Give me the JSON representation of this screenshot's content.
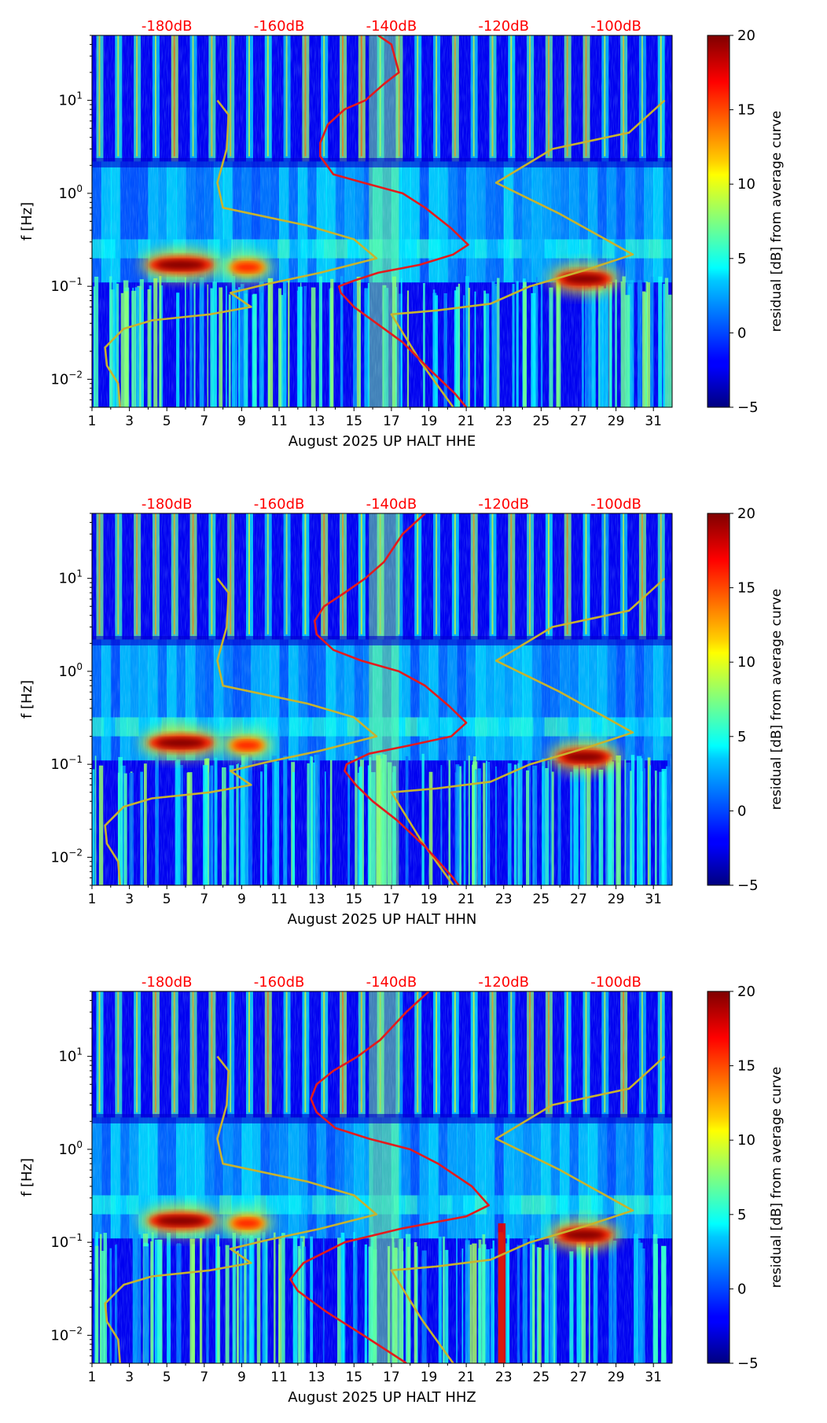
{
  "chart_data": [
    {
      "type": "heatmap",
      "panel": "HHE",
      "xlabel": "August 2025 UP HALT  HHE",
      "ylabel": "f [Hz]",
      "x_ticks": [
        "1",
        "3",
        "5",
        "7",
        "9",
        "11",
        "13",
        "15",
        "17",
        "19",
        "21",
        "23",
        "25",
        "27",
        "29",
        "31"
      ],
      "x_range": [
        1,
        32
      ],
      "y_range_hz": [
        0.005,
        50
      ],
      "y_ticks": [
        {
          "exp": "-2",
          "value": 0.01
        },
        {
          "exp": "-1",
          "value": 0.1
        },
        {
          "exp": "0",
          "value": 1
        },
        {
          "exp": "1",
          "value": 10
        }
      ],
      "top_db_labels": [
        "-180dB",
        "-160dB",
        "-140dB",
        "-120dB",
        "-100dB"
      ],
      "colorbar": {
        "label": "residual [dB] from average curve",
        "min": -5,
        "max": 20,
        "ticks": [
          "−5",
          "0",
          "5",
          "10",
          "15",
          "20"
        ]
      },
      "hot_spots": [
        {
          "x": [
            4.0,
            7.5
          ],
          "f": 0.17,
          "level": 20
        },
        {
          "x": [
            8.3,
            10.3
          ],
          "f": 0.16,
          "level": 16
        },
        {
          "x": [
            25.8,
            28.8
          ],
          "f": 0.12,
          "level": 20
        }
      ],
      "red_curve": [
        {
          "x": 16.3,
          "f": 50
        },
        {
          "x": 17.0,
          "f": 40
        },
        {
          "x": 17.4,
          "f": 20
        },
        {
          "x": 16.6,
          "f": 15
        },
        {
          "x": 15.6,
          "f": 10
        },
        {
          "x": 14.5,
          "f": 8
        },
        {
          "x": 13.6,
          "f": 5.5
        },
        {
          "x": 13.2,
          "f": 3.5
        },
        {
          "x": 13.2,
          "f": 2.5
        },
        {
          "x": 13.9,
          "f": 1.6
        },
        {
          "x": 15.5,
          "f": 1.3
        },
        {
          "x": 17.6,
          "f": 1.0
        },
        {
          "x": 18.8,
          "f": 0.7
        },
        {
          "x": 20.2,
          "f": 0.42
        },
        {
          "x": 21.1,
          "f": 0.28
        },
        {
          "x": 20.3,
          "f": 0.22
        },
        {
          "x": 18.5,
          "f": 0.17
        },
        {
          "x": 16.3,
          "f": 0.14
        },
        {
          "x": 15.0,
          "f": 0.115
        },
        {
          "x": 14.2,
          "f": 0.1
        },
        {
          "x": 14.3,
          "f": 0.085
        },
        {
          "x": 15.0,
          "f": 0.06
        },
        {
          "x": 16.2,
          "f": 0.04
        },
        {
          "x": 17.6,
          "f": 0.025
        },
        {
          "x": 19.0,
          "f": 0.013
        },
        {
          "x": 20.4,
          "f": 0.007
        },
        {
          "x": 21.0,
          "f": 0.005
        }
      ],
      "yellow_curve": [
        {
          "x": 2.5,
          "f": 0.005
        },
        {
          "x": 2.4,
          "f": 0.009
        },
        {
          "x": 1.8,
          "f": 0.014
        },
        {
          "x": 1.7,
          "f": 0.022
        },
        {
          "x": 2.7,
          "f": 0.035
        },
        {
          "x": 4.2,
          "f": 0.043
        },
        {
          "x": 7.3,
          "f": 0.05
        },
        {
          "x": 9.5,
          "f": 0.06
        },
        {
          "x": 8.4,
          "f": 0.085
        },
        {
          "x": 10.3,
          "f": 0.105
        },
        {
          "x": 13.2,
          "f": 0.14
        },
        {
          "x": 16.2,
          "f": 0.2
        },
        {
          "x": 15.0,
          "f": 0.32
        },
        {
          "x": 12.5,
          "f": 0.45
        },
        {
          "x": 8.0,
          "f": 0.7
        },
        {
          "x": 7.7,
          "f": 1.3
        },
        {
          "x": 8.2,
          "f": 3.0
        },
        {
          "x": 8.3,
          "f": 7.0
        },
        {
          "x": 7.7,
          "f": 10.0
        }
      ],
      "yellow_curve_right": [
        {
          "x": 20.3,
          "f": 0.005
        },
        {
          "x": 18.6,
          "f": 0.015
        },
        {
          "x": 17.0,
          "f": 0.05
        },
        {
          "x": 19.4,
          "f": 0.055
        },
        {
          "x": 22.3,
          "f": 0.065
        },
        {
          "x": 24.4,
          "f": 0.1
        },
        {
          "x": 27.4,
          "f": 0.15
        },
        {
          "x": 29.9,
          "f": 0.22
        },
        {
          "x": 26.0,
          "f": 0.6
        },
        {
          "x": 22.6,
          "f": 1.3
        },
        {
          "x": 25.6,
          "f": 3.0
        },
        {
          "x": 29.7,
          "f": 4.5
        },
        {
          "x": 31.6,
          "f": 10.0
        }
      ]
    },
    {
      "type": "heatmap",
      "panel": "HHN",
      "xlabel": "August 2025 UP HALT  HHN",
      "ylabel": "f [Hz]",
      "x_ticks": [
        "1",
        "3",
        "5",
        "7",
        "9",
        "11",
        "13",
        "15",
        "17",
        "19",
        "21",
        "23",
        "25",
        "27",
        "29",
        "31"
      ],
      "x_range": [
        1,
        32
      ],
      "y_range_hz": [
        0.005,
        50
      ],
      "y_ticks": [
        {
          "exp": "-2",
          "value": 0.01
        },
        {
          "exp": "-1",
          "value": 0.1
        },
        {
          "exp": "0",
          "value": 1
        },
        {
          "exp": "1",
          "value": 10
        }
      ],
      "top_db_labels": [
        "-180dB",
        "-160dB",
        "-140dB",
        "-120dB",
        "-100dB"
      ],
      "colorbar": {
        "label": "residual [dB] from average curve",
        "min": -5,
        "max": 20,
        "ticks": [
          "−5",
          "0",
          "5",
          "10",
          "15",
          "20"
        ]
      },
      "hot_spots": [
        {
          "x": [
            4.0,
            7.5
          ],
          "f": 0.17,
          "level": 20
        },
        {
          "x": [
            8.3,
            10.3
          ],
          "f": 0.16,
          "level": 16
        },
        {
          "x": [
            25.8,
            28.8
          ],
          "f": 0.12,
          "level": 20
        }
      ],
      "red_curve": [
        {
          "x": 18.8,
          "f": 50
        },
        {
          "x": 17.6,
          "f": 30
        },
        {
          "x": 16.6,
          "f": 15
        },
        {
          "x": 15.6,
          "f": 10
        },
        {
          "x": 14.5,
          "f": 7
        },
        {
          "x": 13.4,
          "f": 5
        },
        {
          "x": 12.9,
          "f": 3.5
        },
        {
          "x": 13.0,
          "f": 2.5
        },
        {
          "x": 13.9,
          "f": 1.7
        },
        {
          "x": 15.4,
          "f": 1.3
        },
        {
          "x": 17.4,
          "f": 1.0
        },
        {
          "x": 18.8,
          "f": 0.7
        },
        {
          "x": 20.1,
          "f": 0.42
        },
        {
          "x": 21.0,
          "f": 0.28
        },
        {
          "x": 20.2,
          "f": 0.2
        },
        {
          "x": 18.0,
          "f": 0.16
        },
        {
          "x": 15.8,
          "f": 0.13
        },
        {
          "x": 14.6,
          "f": 0.1
        },
        {
          "x": 14.5,
          "f": 0.085
        },
        {
          "x": 15.1,
          "f": 0.06
        },
        {
          "x": 16.0,
          "f": 0.04
        },
        {
          "x": 17.3,
          "f": 0.025
        },
        {
          "x": 18.8,
          "f": 0.013
        },
        {
          "x": 20.3,
          "f": 0.006
        },
        {
          "x": 20.6,
          "f": 0.005
        }
      ],
      "yellow_curve": [
        {
          "x": 2.5,
          "f": 0.005
        },
        {
          "x": 2.4,
          "f": 0.009
        },
        {
          "x": 1.8,
          "f": 0.014
        },
        {
          "x": 1.7,
          "f": 0.022
        },
        {
          "x": 2.7,
          "f": 0.035
        },
        {
          "x": 4.2,
          "f": 0.043
        },
        {
          "x": 7.3,
          "f": 0.05
        },
        {
          "x": 9.5,
          "f": 0.06
        },
        {
          "x": 8.4,
          "f": 0.085
        },
        {
          "x": 10.3,
          "f": 0.105
        },
        {
          "x": 13.2,
          "f": 0.14
        },
        {
          "x": 16.2,
          "f": 0.2
        },
        {
          "x": 15.0,
          "f": 0.32
        },
        {
          "x": 12.5,
          "f": 0.45
        },
        {
          "x": 8.0,
          "f": 0.7
        },
        {
          "x": 7.7,
          "f": 1.3
        },
        {
          "x": 8.2,
          "f": 3.0
        },
        {
          "x": 8.3,
          "f": 7.0
        },
        {
          "x": 7.7,
          "f": 10.0
        }
      ],
      "yellow_curve_right": [
        {
          "x": 20.3,
          "f": 0.005
        },
        {
          "x": 18.6,
          "f": 0.015
        },
        {
          "x": 17.0,
          "f": 0.05
        },
        {
          "x": 19.4,
          "f": 0.055
        },
        {
          "x": 22.3,
          "f": 0.065
        },
        {
          "x": 24.4,
          "f": 0.1
        },
        {
          "x": 27.4,
          "f": 0.15
        },
        {
          "x": 29.9,
          "f": 0.22
        },
        {
          "x": 26.0,
          "f": 0.6
        },
        {
          "x": 22.6,
          "f": 1.3
        },
        {
          "x": 25.6,
          "f": 3.0
        },
        {
          "x": 29.7,
          "f": 4.5
        },
        {
          "x": 31.6,
          "f": 10.0
        }
      ]
    },
    {
      "type": "heatmap",
      "panel": "HHZ",
      "xlabel": "August 2025 UP HALT  HHZ",
      "ylabel": "f [Hz]",
      "x_ticks": [
        "1",
        "3",
        "5",
        "7",
        "9",
        "11",
        "13",
        "15",
        "17",
        "19",
        "21",
        "23",
        "25",
        "27",
        "29",
        "31"
      ],
      "x_range": [
        1,
        32
      ],
      "y_range_hz": [
        0.005,
        50
      ],
      "y_ticks": [
        {
          "exp": "-2",
          "value": 0.01
        },
        {
          "exp": "-1",
          "value": 0.1
        },
        {
          "exp": "0",
          "value": 1
        },
        {
          "exp": "1",
          "value": 10
        }
      ],
      "top_db_labels": [
        "-180dB",
        "-160dB",
        "-140dB",
        "-120dB",
        "-100dB"
      ],
      "colorbar": {
        "label": "residual [dB] from average curve",
        "min": -5,
        "max": 20,
        "ticks": [
          "−5",
          "0",
          "5",
          "10",
          "15",
          "20"
        ]
      },
      "hot_spots": [
        {
          "x": [
            4.0,
            7.5
          ],
          "f": 0.17,
          "level": 20
        },
        {
          "x": [
            8.3,
            10.3
          ],
          "f": 0.16,
          "level": 16
        },
        {
          "x": [
            25.8,
            28.8
          ],
          "f": 0.12,
          "level": 20
        },
        {
          "x": [
            22.7,
            23.1
          ],
          "f": 0.02,
          "level": 20
        }
      ],
      "red_curve": [
        {
          "x": 19.0,
          "f": 50
        },
        {
          "x": 17.8,
          "f": 30
        },
        {
          "x": 16.4,
          "f": 15
        },
        {
          "x": 15.2,
          "f": 10
        },
        {
          "x": 13.9,
          "f": 7
        },
        {
          "x": 13.0,
          "f": 5
        },
        {
          "x": 12.7,
          "f": 3.5
        },
        {
          "x": 13.0,
          "f": 2.5
        },
        {
          "x": 14.0,
          "f": 1.7
        },
        {
          "x": 15.8,
          "f": 1.3
        },
        {
          "x": 18.0,
          "f": 1.0
        },
        {
          "x": 19.5,
          "f": 0.7
        },
        {
          "x": 21.3,
          "f": 0.4
        },
        {
          "x": 22.2,
          "f": 0.25
        },
        {
          "x": 21.0,
          "f": 0.19
        },
        {
          "x": 17.5,
          "f": 0.14
        },
        {
          "x": 14.5,
          "f": 0.1
        },
        {
          "x": 12.3,
          "f": 0.06
        },
        {
          "x": 11.6,
          "f": 0.04
        },
        {
          "x": 12.0,
          "f": 0.03
        },
        {
          "x": 13.5,
          "f": 0.018
        },
        {
          "x": 15.5,
          "f": 0.01
        },
        {
          "x": 17.2,
          "f": 0.006
        },
        {
          "x": 17.8,
          "f": 0.005
        }
      ],
      "yellow_curve": [
        {
          "x": 2.5,
          "f": 0.005
        },
        {
          "x": 2.4,
          "f": 0.009
        },
        {
          "x": 1.8,
          "f": 0.014
        },
        {
          "x": 1.7,
          "f": 0.022
        },
        {
          "x": 2.7,
          "f": 0.035
        },
        {
          "x": 4.2,
          "f": 0.043
        },
        {
          "x": 7.3,
          "f": 0.05
        },
        {
          "x": 9.5,
          "f": 0.06
        },
        {
          "x": 8.4,
          "f": 0.085
        },
        {
          "x": 10.3,
          "f": 0.105
        },
        {
          "x": 13.2,
          "f": 0.14
        },
        {
          "x": 16.2,
          "f": 0.2
        },
        {
          "x": 15.0,
          "f": 0.32
        },
        {
          "x": 12.5,
          "f": 0.45
        },
        {
          "x": 8.0,
          "f": 0.7
        },
        {
          "x": 7.7,
          "f": 1.3
        },
        {
          "x": 8.2,
          "f": 3.0
        },
        {
          "x": 8.3,
          "f": 7.0
        },
        {
          "x": 7.7,
          "f": 10.0
        }
      ],
      "yellow_curve_right": [
        {
          "x": 20.3,
          "f": 0.005
        },
        {
          "x": 18.6,
          "f": 0.015
        },
        {
          "x": 17.0,
          "f": 0.05
        },
        {
          "x": 19.4,
          "f": 0.055
        },
        {
          "x": 22.3,
          "f": 0.065
        },
        {
          "x": 24.4,
          "f": 0.1
        },
        {
          "x": 27.4,
          "f": 0.15
        },
        {
          "x": 29.9,
          "f": 0.22
        },
        {
          "x": 26.0,
          "f": 0.6
        },
        {
          "x": 22.6,
          "f": 1.3
        },
        {
          "x": 25.6,
          "f": 3.0
        },
        {
          "x": 29.7,
          "f": 4.5
        },
        {
          "x": 31.6,
          "f": 10.0
        }
      ]
    }
  ],
  "colors": {
    "red_curve": "#e41a1c",
    "yellow_curve": "#c8b32e",
    "db_label": "#ff0000",
    "axis": "#000000"
  }
}
